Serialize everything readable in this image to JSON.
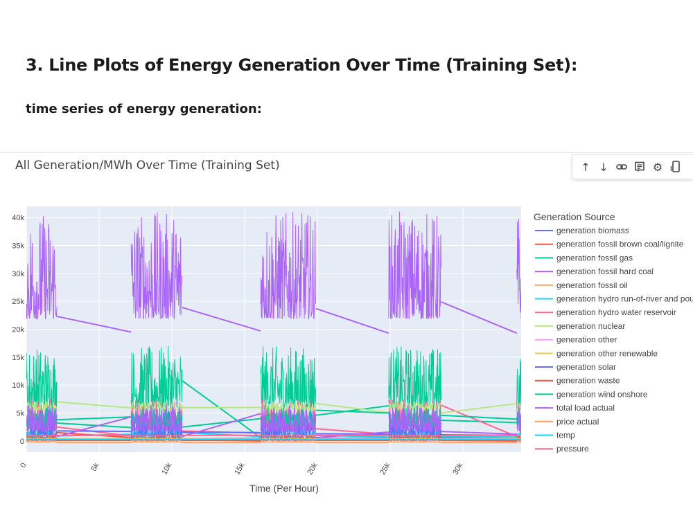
{
  "page": {
    "heading": "3. Line Plots of Energy Generation Over Time (Training Set):",
    "subheading": "time series of energy generation:"
  },
  "toolbar": {
    "icons": [
      "arrow-up-icon",
      "arrow-down-icon",
      "link-icon",
      "notes-icon",
      "gear-icon",
      "phone-icon"
    ]
  },
  "chart_data": {
    "type": "line",
    "title": "All Generation/MWh Over Time (Training Set)",
    "xlabel": "Time (Per Hour)",
    "ylabel": "",
    "xlim": [
      0,
      34000
    ],
    "ylim": [
      -2000,
      42000
    ],
    "x_ticks": [
      0,
      5000,
      10000,
      15000,
      20000,
      25000,
      30000
    ],
    "x_tick_labels": [
      "0",
      "5k",
      "10k",
      "15k",
      "20k",
      "25k",
      "30k"
    ],
    "y_ticks": [
      0,
      5000,
      10000,
      15000,
      20000,
      25000,
      30000,
      35000,
      40000
    ],
    "y_tick_labels": [
      "0",
      "5k",
      "10k",
      "15k",
      "20k",
      "25k",
      "30k",
      "35k",
      "40k"
    ],
    "grid": true,
    "legend_title": "Generation Source",
    "legend_position": "right",
    "blocks": [
      [
        0,
        2100
      ],
      [
        7200,
        10700
      ],
      [
        16100,
        19900
      ],
      [
        24900,
        28500
      ],
      [
        33700,
        34500
      ]
    ],
    "series": [
      {
        "name": "generation biomass",
        "color": "#636efa",
        "low": 200,
        "high": 1000,
        "bridges": [
          [
            2100,
            300,
            7200,
            400
          ],
          [
            10700,
            400,
            16100,
            500
          ],
          [
            19900,
            500,
            24900,
            500
          ],
          [
            28500,
            600,
            33700,
            400
          ]
        ]
      },
      {
        "name": "generation fossil brown coal/lignite",
        "color": "#ef553b",
        "low": 0,
        "high": 1500,
        "bridges": [
          [
            2100,
            1500,
            7200,
            600
          ],
          [
            10700,
            200,
            16100,
            0
          ],
          [
            19900,
            400,
            24900,
            300
          ],
          [
            28500,
            100,
            33700,
            0
          ]
        ]
      },
      {
        "name": "generation fossil gas",
        "color": "#00cc96",
        "low": 4000,
        "high": 17000,
        "bridges": [
          [
            2100,
            3800,
            7200,
            4300
          ],
          [
            10700,
            10800,
            16100,
            600
          ],
          [
            19900,
            4600,
            24900,
            6300
          ],
          [
            28500,
            3700,
            33700,
            3300
          ]
        ]
      },
      {
        "name": "generation fossil hard coal",
        "color": "#ab63fa",
        "low": 18500,
        "high": 41000,
        "bridges": [
          [
            2100,
            22300,
            7200,
            19500
          ],
          [
            10700,
            23900,
            16100,
            19700
          ],
          [
            19900,
            23700,
            24900,
            19300
          ],
          [
            28500,
            24900,
            33700,
            19300
          ]
        ]
      },
      {
        "name": "generation fossil oil",
        "color": "#ffa15a",
        "low": 150,
        "high": 450,
        "bridges": [
          [
            2100,
            300,
            7200,
            300
          ],
          [
            10700,
            300,
            16100,
            300
          ],
          [
            19900,
            300,
            24900,
            300
          ],
          [
            28500,
            300,
            33700,
            300
          ]
        ]
      },
      {
        "name": "generation hydro run-of-river and poundage",
        "color": "#19d3f3",
        "low": 500,
        "high": 2500,
        "bridges": [
          [
            2100,
            900,
            7200,
            1200
          ],
          [
            10700,
            1500,
            16100,
            800
          ],
          [
            19900,
            1000,
            24900,
            700
          ],
          [
            28500,
            800,
            33700,
            700
          ]
        ]
      },
      {
        "name": "generation hydro water reservoir",
        "color": "#ff6692",
        "low": 800,
        "high": 7500,
        "bridges": [
          [
            2100,
            2500,
            7200,
            900
          ],
          [
            10700,
            1800,
            16100,
            1400
          ],
          [
            19900,
            2200,
            24900,
            1200
          ],
          [
            28500,
            6400,
            33700,
            800
          ]
        ]
      },
      {
        "name": "generation nuclear",
        "color": "#b6e880",
        "low": 5200,
        "high": 7100,
        "bridges": [
          [
            2100,
            7000,
            7200,
            5900
          ],
          [
            10700,
            6000,
            16100,
            6000
          ],
          [
            19900,
            6700,
            24900,
            5100
          ],
          [
            28500,
            5000,
            33700,
            6700
          ]
        ]
      },
      {
        "name": "generation other",
        "color": "#ff97ff",
        "low": 0,
        "high": 350,
        "bridges": [
          [
            2100,
            200,
            7200,
            200
          ],
          [
            10700,
            200,
            16100,
            200
          ],
          [
            19900,
            200,
            24900,
            200
          ],
          [
            28500,
            200,
            33700,
            200
          ]
        ]
      },
      {
        "name": "generation other renewable",
        "color": "#fecb52",
        "low": 300,
        "high": 600,
        "bridges": [
          [
            2100,
            400,
            7200,
            400
          ],
          [
            10700,
            400,
            16100,
            400
          ],
          [
            19900,
            400,
            24900,
            400
          ],
          [
            28500,
            400,
            33700,
            400
          ]
        ]
      },
      {
        "name": "generation solar",
        "color": "#636efa",
        "low": 0,
        "high": 5500,
        "bridges": [
          [
            2100,
            1800,
            7200,
            1700
          ],
          [
            10700,
            1600,
            16100,
            1500
          ],
          [
            19900,
            1300,
            24900,
            1200
          ],
          [
            28500,
            1100,
            33700,
            1000
          ]
        ]
      },
      {
        "name": "generation waste",
        "color": "#ef553b",
        "low": 0,
        "high": 350,
        "bridges": [
          [
            2100,
            100,
            7200,
            100
          ],
          [
            10700,
            100,
            16100,
            100
          ],
          [
            19900,
            100,
            24900,
            100
          ],
          [
            28500,
            100,
            33700,
            100
          ]
        ]
      },
      {
        "name": "generation wind onshore",
        "color": "#00cc96",
        "low": 2000,
        "high": 6000,
        "bridges": [
          [
            2100,
            3200,
            7200,
            2400
          ],
          [
            10700,
            2500,
            16100,
            4000
          ],
          [
            19900,
            5500,
            24900,
            5000
          ],
          [
            28500,
            4600,
            33700,
            3900
          ]
        ]
      },
      {
        "name": "total load actual",
        "color": "#ab63fa",
        "low": 800,
        "high": 6500,
        "bridges": [
          [
            2100,
            800,
            7200,
            4300
          ],
          [
            10700,
            800,
            16100,
            4900
          ],
          [
            19900,
            600,
            24900,
            1600
          ],
          [
            28500,
            1700,
            33700,
            1200
          ]
        ]
      },
      {
        "name": "price actual",
        "color": "#ffa15a",
        "low": -300,
        "high": 50,
        "bridges": [
          [
            2100,
            -300,
            7200,
            -300
          ],
          [
            10700,
            -300,
            16100,
            -300
          ],
          [
            19900,
            -300,
            24900,
            -300
          ],
          [
            28500,
            -300,
            33700,
            -300
          ]
        ]
      },
      {
        "name": "temp",
        "color": "#19d3f3",
        "low": 200,
        "high": 450,
        "bridges": [
          [
            2100,
            300,
            7200,
            300
          ],
          [
            10700,
            300,
            16100,
            300
          ],
          [
            19900,
            300,
            24900,
            300
          ],
          [
            28500,
            300,
            33700,
            300
          ]
        ]
      },
      {
        "name": "pressure",
        "color": "#ff6692",
        "low": 900,
        "high": 1100,
        "bridges": [
          [
            2100,
            1000,
            7200,
            1000
          ],
          [
            10700,
            1000,
            16100,
            1000
          ],
          [
            19900,
            1000,
            24900,
            1000
          ],
          [
            28500,
            1000,
            33700,
            1000
          ]
        ]
      }
    ]
  }
}
